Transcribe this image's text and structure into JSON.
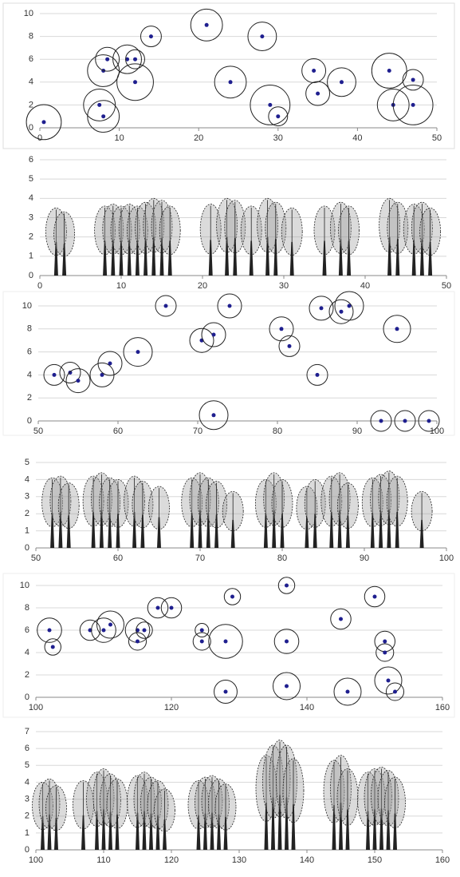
{
  "chart_data": [
    {
      "type": "scatter",
      "color": "#1f1f8f",
      "ring_color": "#222222",
      "x": [
        0.5,
        7.5,
        8,
        8,
        8.5,
        11,
        12,
        12,
        14,
        21,
        24,
        28,
        29,
        30,
        34.5,
        35,
        38,
        44,
        44.5,
        47,
        47
      ],
      "values": [
        0.5,
        2,
        1,
        5,
        6,
        6,
        6,
        4,
        8,
        9,
        4,
        8,
        2,
        1,
        5,
        3,
        4,
        5,
        2,
        4.2,
        2
      ],
      "sizes": [
        2.2,
        2,
        2,
        2,
        1.5,
        1.8,
        1.2,
        2.3,
        1.3,
        2,
        2,
        1.8,
        2.5,
        1.2,
        1.5,
        1.5,
        1.8,
        2.2,
        2,
        1.3,
        2.5
      ],
      "xlim": [
        0,
        50
      ],
      "ylim": [
        0,
        10
      ],
      "xticks": [
        0,
        10,
        20,
        30,
        40,
        50
      ],
      "yticks": [
        0,
        2,
        4,
        6,
        8,
        10
      ],
      "grid": true
    },
    {
      "type": "trees",
      "color": "#222222",
      "x": [
        2,
        3,
        8,
        9,
        10,
        11,
        12,
        13,
        14,
        15,
        16,
        21,
        23,
        24,
        26,
        28,
        29,
        31,
        35,
        37,
        38,
        43,
        44,
        46,
        47,
        48
      ],
      "values": [
        3.5,
        3.3,
        3.6,
        3.7,
        3.6,
        3.7,
        3.6,
        3.8,
        4,
        3.9,
        3.6,
        3.7,
        4,
        3.9,
        3.6,
        4,
        3.8,
        3.5,
        3.6,
        3.8,
        3.6,
        4,
        3.8,
        3.7,
        3.8,
        3.5
      ],
      "xlim": [
        0,
        50
      ],
      "ylim": [
        0,
        6
      ],
      "xticks": [
        0,
        10,
        20,
        30,
        40,
        50
      ],
      "yticks": [
        0,
        1,
        2,
        3,
        4,
        5,
        6
      ],
      "grid": true
    },
    {
      "type": "scatter",
      "color": "#1f1f8f",
      "ring_color": "#222222",
      "x": [
        52,
        54,
        55,
        58,
        59,
        62.5,
        66,
        70.5,
        72,
        72,
        74,
        80.5,
        81.5,
        85,
        85.5,
        88,
        89,
        93,
        95,
        96,
        99
      ],
      "values": [
        4,
        4.2,
        3.5,
        4,
        5,
        6,
        10,
        7,
        7.5,
        0.5,
        10,
        8,
        6.5,
        4,
        9.8,
        9.5,
        10,
        0,
        8,
        0,
        0
      ],
      "sizes": [
        1.3,
        1.3,
        1.5,
        1.5,
        1.5,
        1.8,
        1.3,
        1.5,
        1.5,
        1.8,
        1.5,
        1.5,
        1.3,
        1.3,
        1.5,
        1.5,
        1.8,
        1.3,
        1.7,
        1.3,
        1.3
      ],
      "xlim": [
        50,
        100
      ],
      "ylim": [
        0,
        10
      ],
      "xticks": [
        50,
        60,
        70,
        80,
        90,
        100
      ],
      "yticks": [
        0,
        2,
        4,
        6,
        8,
        10
      ],
      "grid": true
    },
    {
      "type": "trees",
      "color": "#222222",
      "x": [
        52,
        53,
        54,
        57,
        58,
        59,
        60,
        62,
        63,
        65,
        69,
        70,
        71,
        72,
        74,
        78,
        79,
        80,
        83,
        84,
        86,
        87,
        88,
        91,
        92,
        93,
        94,
        97
      ],
      "values": [
        4.1,
        4.2,
        3.8,
        4.2,
        4.4,
        4.1,
        4,
        4.2,
        3.9,
        3.6,
        4.1,
        4.4,
        4.1,
        3.9,
        3.3,
        4,
        4.4,
        4,
        3.6,
        4,
        4.2,
        4.4,
        3.8,
        4.1,
        4.3,
        4.5,
        4.2,
        3.3
      ],
      "xlim": [
        50,
        100
      ],
      "ylim": [
        0,
        5
      ],
      "xticks": [
        50,
        60,
        70,
        80,
        90,
        100
      ],
      "yticks": [
        0,
        1,
        2,
        3,
        4,
        5
      ],
      "grid": true
    },
    {
      "type": "scatter",
      "color": "#1f1f8f",
      "ring_color": "#222222",
      "x": [
        102,
        102.5,
        108,
        110,
        111,
        115,
        116,
        115,
        118,
        120,
        124.5,
        124.5,
        128,
        128,
        129,
        137,
        137,
        137,
        145,
        146,
        150,
        151.5,
        151.5,
        152,
        153
      ],
      "values": [
        6,
        4.5,
        6,
        6,
        6.5,
        6,
        6,
        5,
        8,
        8,
        6,
        5,
        5,
        0.5,
        9,
        10,
        5,
        1,
        7,
        0.5,
        9,
        5,
        4,
        1.5,
        0.5
      ],
      "sizes": [
        1.8,
        1.2,
        1.5,
        1.8,
        2,
        1.8,
        1.2,
        1.3,
        1.5,
        1.5,
        1,
        1.3,
        2.5,
        1.7,
        1.2,
        1.2,
        1.8,
        2,
        1.5,
        2,
        1.5,
        1.5,
        1.3,
        2,
        1.3
      ],
      "xlim": [
        100,
        160
      ],
      "ylim": [
        0,
        10
      ],
      "xticks": [
        100,
        120,
        140,
        160
      ],
      "yticks": [
        0,
        2,
        4,
        6,
        8,
        10
      ],
      "grid": true
    },
    {
      "type": "trees",
      "color": "#222222",
      "x": [
        101,
        102,
        103,
        107,
        109,
        110,
        111,
        112,
        115,
        116,
        117,
        118,
        119,
        124,
        125,
        126,
        127,
        128,
        134,
        135,
        136,
        137,
        138,
        144,
        145,
        146,
        149,
        150,
        151,
        152,
        153
      ],
      "values": [
        4,
        4.2,
        3.8,
        4.1,
        4.6,
        4.8,
        4.5,
        4.2,
        4.4,
        4.6,
        4.3,
        4.1,
        3.6,
        4.1,
        4.3,
        4.4,
        4.2,
        3.9,
        5.6,
        6.2,
        6.5,
        6.2,
        5.4,
        5.3,
        5.6,
        4.8,
        4.6,
        4.8,
        4.9,
        4.7,
        4.3
      ],
      "xlim": [
        100,
        160
      ],
      "ylim": [
        0,
        7
      ],
      "xticks": [
        100,
        110,
        120,
        130,
        140,
        150,
        160
      ],
      "yticks": [
        0,
        1,
        2,
        3,
        4,
        5,
        6,
        7
      ],
      "grid": true
    }
  ]
}
